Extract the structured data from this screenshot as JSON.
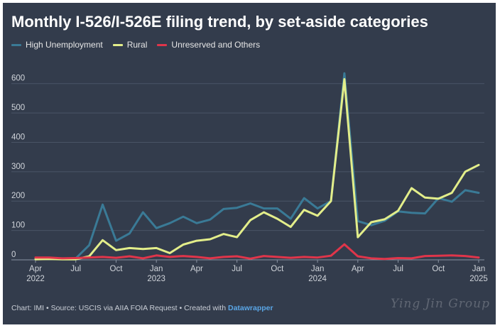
{
  "title": "Monthly I-526/I-526E filing trend, by set-aside categories",
  "footer": {
    "prefix": "Chart: IMI • Source: USCIS via AIIA FOIA Request • Created with",
    "brand": "Datawrapper"
  },
  "watermark": "Ying Jin Group",
  "colors": {
    "background": "#333c4c",
    "grid": "#4a5466",
    "axis_text": "#d0d4da"
  },
  "chart_data": {
    "type": "line",
    "title": "Monthly I-526/I-526E filing trend, by set-aside categories",
    "xlabel": "",
    "ylabel": "",
    "ylim": [
      0,
      650
    ],
    "y_ticks": [
      0,
      100,
      200,
      300,
      400,
      500,
      600
    ],
    "grid": true,
    "legend_position": "top-left",
    "x": [
      "2022-04",
      "2022-05",
      "2022-06",
      "2022-07",
      "2022-08",
      "2022-09",
      "2022-10",
      "2022-11",
      "2022-12",
      "2023-01",
      "2023-02",
      "2023-03",
      "2023-04",
      "2023-05",
      "2023-06",
      "2023-07",
      "2023-08",
      "2023-09",
      "2023-10",
      "2023-11",
      "2023-12",
      "2024-01",
      "2024-02",
      "2024-03",
      "2024-04",
      "2024-05",
      "2024-06",
      "2024-07",
      "2024-08",
      "2024-09",
      "2024-10",
      "2024-11",
      "2024-12",
      "2025-01"
    ],
    "x_tick_labels": [
      {
        "at": "2022-04",
        "lines": [
          "Apr",
          "2022"
        ]
      },
      {
        "at": "2022-07",
        "lines": [
          "Jul"
        ]
      },
      {
        "at": "2022-10",
        "lines": [
          "Oct"
        ]
      },
      {
        "at": "2023-01",
        "lines": [
          "Jan",
          "2023"
        ]
      },
      {
        "at": "2023-04",
        "lines": [
          "Apr"
        ]
      },
      {
        "at": "2023-07",
        "lines": [
          "Jul"
        ]
      },
      {
        "at": "2023-10",
        "lines": [
          "Oct"
        ]
      },
      {
        "at": "2024-01",
        "lines": [
          "Jan",
          "2024"
        ]
      },
      {
        "at": "2024-04",
        "lines": [
          "Apr"
        ]
      },
      {
        "at": "2024-07",
        "lines": [
          "Jul"
        ]
      },
      {
        "at": "2024-10",
        "lines": [
          "Oct"
        ]
      },
      {
        "at": "2025-01",
        "lines": [
          "Jan",
          "2025"
        ]
      }
    ],
    "series": [
      {
        "name": "High Unemployment",
        "color": "#3a7a96",
        "values": [
          5,
          5,
          3,
          5,
          50,
          188,
          65,
          90,
          162,
          108,
          125,
          147,
          125,
          137,
          173,
          177,
          192,
          175,
          175,
          140,
          210,
          175,
          200,
          635,
          132,
          118,
          133,
          165,
          160,
          158,
          210,
          198,
          237,
          228
        ]
      },
      {
        "name": "Rural",
        "color": "#e3ee8a",
        "values": [
          2,
          3,
          2,
          2,
          12,
          67,
          33,
          40,
          37,
          40,
          23,
          52,
          65,
          70,
          88,
          77,
          135,
          162,
          140,
          112,
          170,
          150,
          200,
          615,
          77,
          128,
          138,
          167,
          244,
          212,
          208,
          228,
          300,
          323
        ]
      },
      {
        "name": "Unreserved and Others",
        "color": "#e0354a",
        "values": [
          8,
          8,
          5,
          6,
          8,
          10,
          7,
          12,
          5,
          15,
          10,
          13,
          10,
          5,
          10,
          12,
          4,
          13,
          10,
          7,
          10,
          8,
          14,
          53,
          12,
          5,
          3,
          6,
          5,
          13,
          14,
          15,
          13,
          8
        ]
      }
    ]
  }
}
